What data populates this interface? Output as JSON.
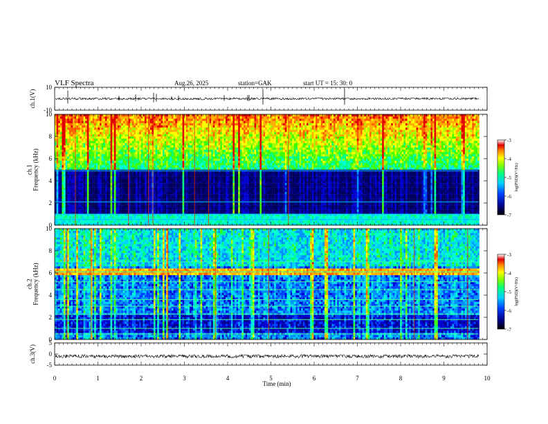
{
  "header": {
    "title": "VLF  Spectra",
    "date": "Aug.26, 2025",
    "station": "station=GAK",
    "start_ut": "start  UT =   15: 30: 0"
  },
  "chart_data": [
    {
      "type": "line",
      "name": "ch1-waveform",
      "ylabel": "ch.1(V)",
      "ylim": [
        -10,
        10
      ],
      "yticks": [
        "10",
        "-10"
      ],
      "xlim": [
        0,
        10
      ],
      "baseline": 0,
      "color": "#000000"
    },
    {
      "type": "heatmap",
      "name": "ch1-spectrogram",
      "ylabel": "ch.1\nFrequency  (kHz)",
      "ylabel_lines": [
        "ch.1",
        "Frequency  (kHz)"
      ],
      "ylim": [
        0,
        10
      ],
      "yticks": [
        "0",
        "2",
        "4",
        "6",
        "8",
        "10"
      ],
      "xlim": [
        0,
        9.8
      ],
      "colorbar": {
        "label": "log(PSD)(V²/Hz)",
        "ticks": [
          "-3",
          "-4",
          "-5",
          "-6",
          "-7"
        ],
        "range": [
          -7,
          -3
        ]
      },
      "bands_khz": [
        0.5,
        1.0,
        2.1,
        4.9
      ]
    },
    {
      "type": "heatmap",
      "name": "ch2-spectrogram",
      "ylabel_lines": [
        "ch.2",
        "Frequency  (kHz)"
      ],
      "ylim": [
        0,
        10
      ],
      "yticks": [
        "0",
        "2",
        "4",
        "6",
        "8",
        "10"
      ],
      "xlim": [
        0,
        9.8
      ],
      "colorbar": {
        "label": "log(PSD)(V²/Hz)",
        "ticks": [
          "-3",
          "-4",
          "-5",
          "-6",
          "-7"
        ],
        "range": [
          -7,
          -3
        ]
      },
      "bands_khz": [
        0.5,
        1.0,
        1.8,
        2.3,
        3.0,
        3.6,
        4.5,
        5.2,
        6.1,
        7.0
      ]
    },
    {
      "type": "line",
      "name": "ch3-waveform",
      "ylabel": "ch.3(V)",
      "ylim": [
        -5,
        5
      ],
      "yticks": [
        "5",
        "0",
        "-5"
      ],
      "xlim": [
        0,
        10
      ],
      "baseline": -1,
      "color": "#000000"
    }
  ],
  "xaxis": {
    "label": "Time  (min)",
    "ticks": [
      "0",
      "1",
      "2",
      "3",
      "4",
      "5",
      "6",
      "7",
      "8",
      "9",
      "10"
    ],
    "range": [
      0,
      10
    ]
  }
}
